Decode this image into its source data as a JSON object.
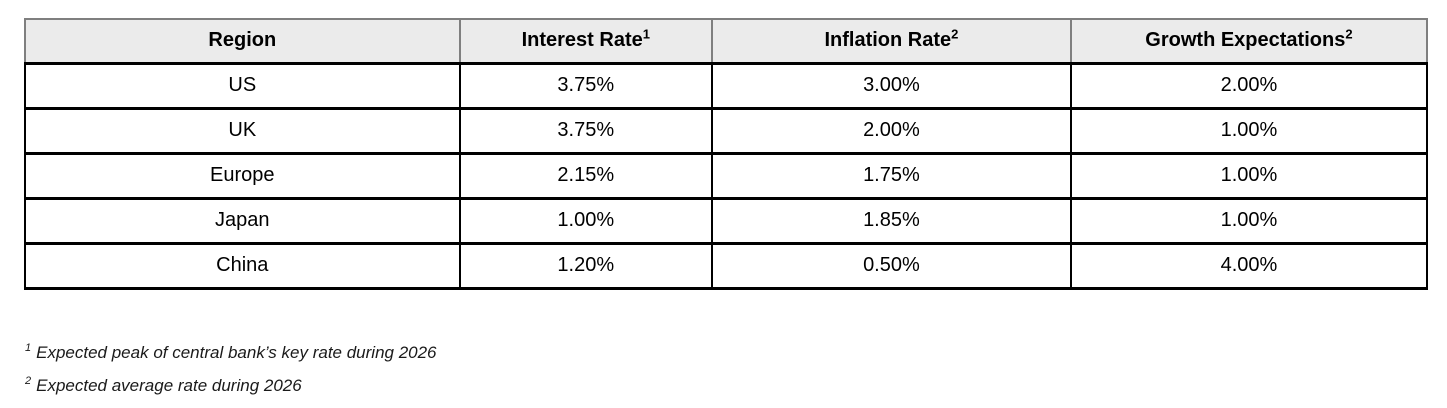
{
  "table": {
    "headers": [
      {
        "label": "Region",
        "sup": ""
      },
      {
        "label": "Interest Rate",
        "sup": "1"
      },
      {
        "label": "Inflation Rate",
        "sup": "2"
      },
      {
        "label": "Growth Expectations",
        "sup": "2"
      }
    ],
    "rows": [
      {
        "cells": [
          "US",
          "3.75%",
          "3.00%",
          "2.00%"
        ]
      },
      {
        "cells": [
          "UK",
          "3.75%",
          "2.00%",
          "1.00%"
        ]
      },
      {
        "cells": [
          "Europe",
          "2.15%",
          "1.75%",
          "1.00%"
        ]
      },
      {
        "cells": [
          "Japan",
          "1.00%",
          "1.85%",
          "1.00%"
        ]
      },
      {
        "cells": [
          "China",
          "1.20%",
          "0.50%",
          "4.00%"
        ]
      }
    ]
  },
  "footnotes": [
    {
      "marker": "1",
      "text": "Expected peak of central bank’s key rate during 2026"
    },
    {
      "marker": "2",
      "text": "Expected average rate during 2026"
    }
  ],
  "colors": {
    "header_bg": "#ebebeb",
    "header_border": "#7f7f7f",
    "body_border": "#000000",
    "text": "#000000"
  },
  "chart_data": {
    "type": "table",
    "columns": [
      "Region",
      "Interest Rate¹",
      "Inflation Rate²",
      "Growth Expectations²"
    ],
    "rows": [
      [
        "US",
        "3.75%",
        "3.00%",
        "2.00%"
      ],
      [
        "UK",
        "3.75%",
        "2.00%",
        "1.00%"
      ],
      [
        "Europe",
        "2.15%",
        "1.75%",
        "1.00%"
      ],
      [
        "Japan",
        "1.00%",
        "1.85%",
        "1.00%"
      ],
      [
        "China",
        "1.20%",
        "0.50%",
        "4.00%"
      ]
    ],
    "numeric": {
      "interest_rate_pct": [
        3.75,
        3.75,
        2.15,
        1.0,
        1.2
      ],
      "inflation_rate_pct": [
        3.0,
        2.0,
        1.75,
        1.85,
        0.5
      ],
      "growth_expectations_pct": [
        2.0,
        1.0,
        1.0,
        1.0,
        4.0
      ]
    },
    "footnotes": [
      "¹ Expected peak of central bank’s key rate during 2026",
      "² Expected average rate during 2026"
    ],
    "title": ""
  }
}
